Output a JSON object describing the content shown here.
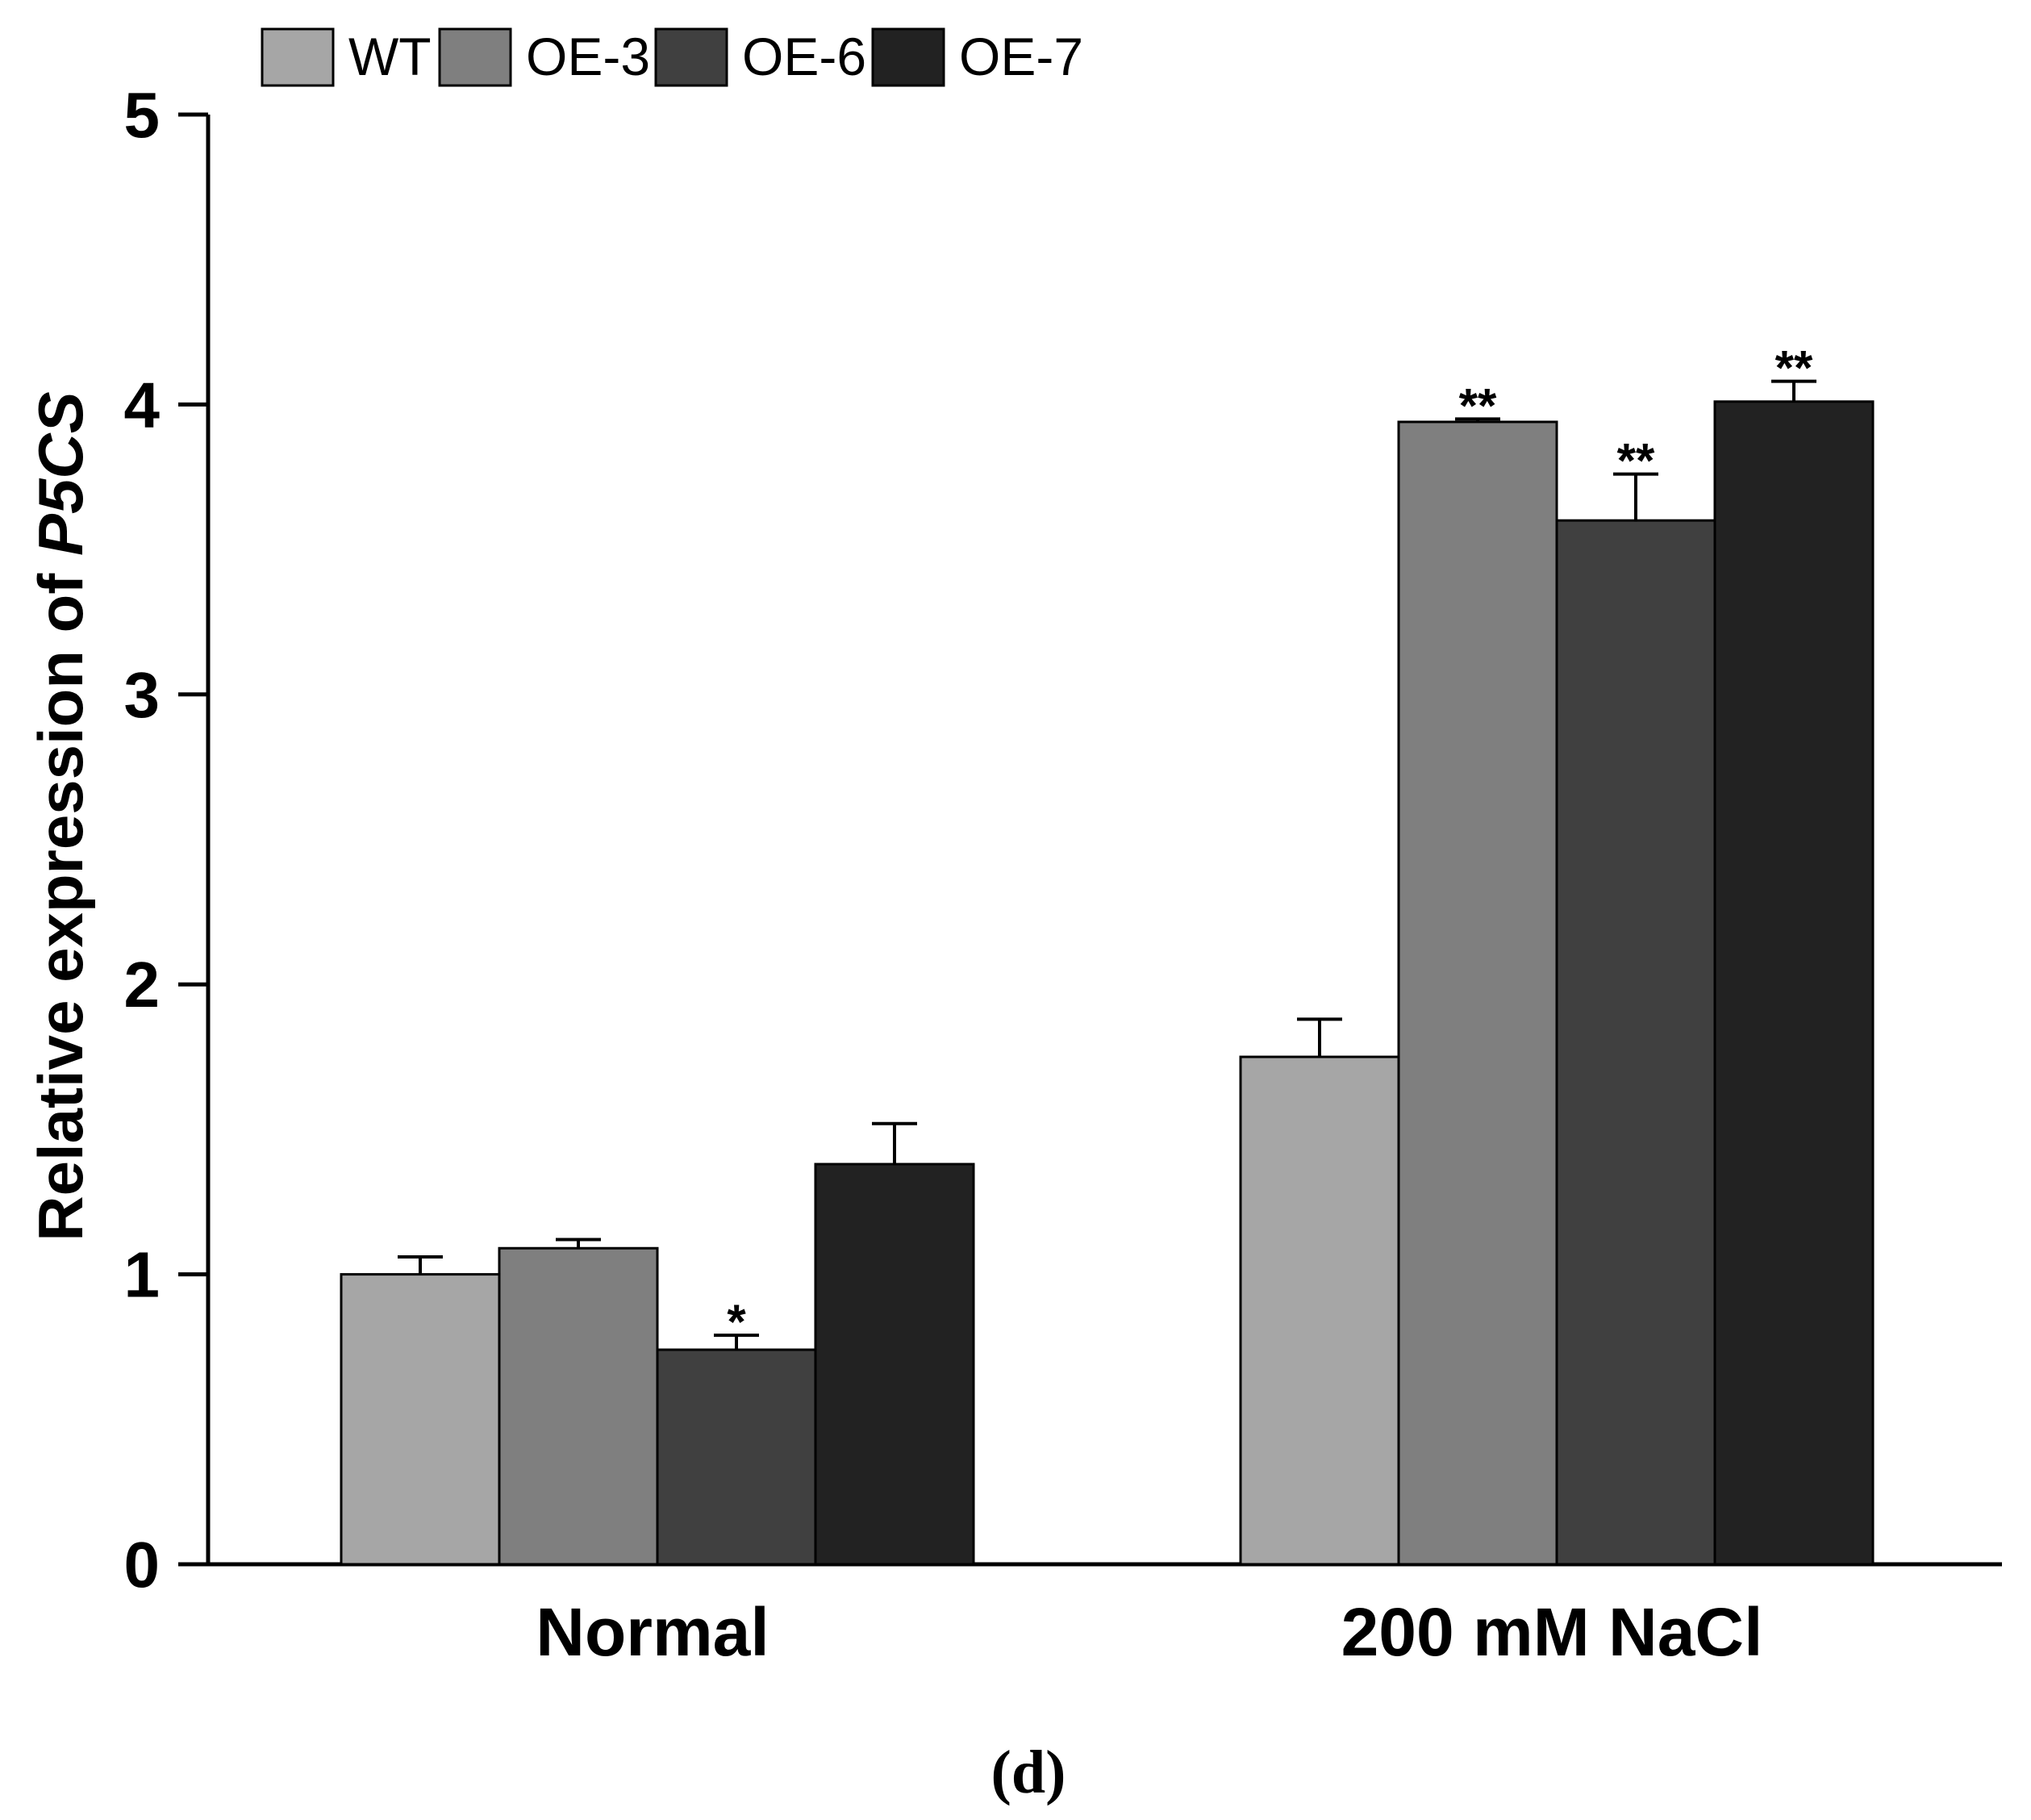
{
  "chart_data": {
    "type": "bar",
    "categories": [
      "Normal",
      "200 mM NaCl"
    ],
    "series": [
      {
        "name": "WT",
        "color": "#a6a6a6",
        "values": [
          1.0,
          1.75
        ],
        "errors": [
          0.06,
          0.13
        ],
        "sig": [
          "",
          ""
        ]
      },
      {
        "name": "OE-3",
        "color": "#7f7f7f",
        "values": [
          1.09,
          3.94
        ],
        "errors": [
          0.03,
          0.01
        ],
        "sig": [
          "",
          "**"
        ]
      },
      {
        "name": "OE-6",
        "color": "#404040",
        "values": [
          0.74,
          3.6
        ],
        "errors": [
          0.05,
          0.16
        ],
        "sig": [
          "*",
          "**"
        ]
      },
      {
        "name": "OE-7",
        "color": "#222222",
        "values": [
          1.38,
          4.01
        ],
        "errors": [
          0.14,
          0.07
        ],
        "sig": [
          "",
          "**"
        ]
      }
    ],
    "ylabel": "Relative expression of ",
    "ylabel_italic": "P5CS",
    "ylim": [
      0,
      5
    ],
    "yticks": [
      "0",
      "1",
      "2",
      "3",
      "4",
      "5"
    ],
    "legend_position": "top-left",
    "caption": "(d)"
  }
}
